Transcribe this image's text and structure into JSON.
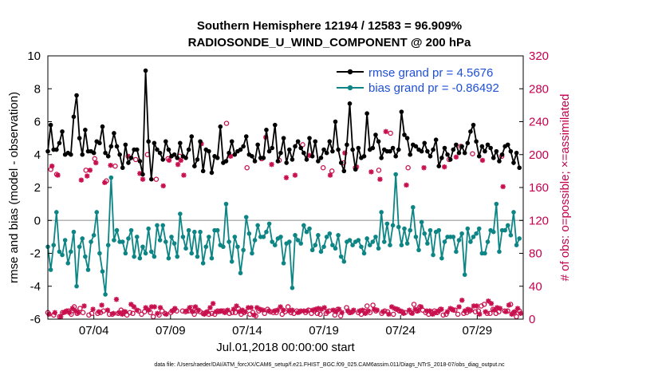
{
  "chart_data": {
    "type": "line",
    "title": "Southern Hemisphere 12194 / 12583 = 96.909%",
    "subtitle": "RADIOSONDE_U_WIND_COMPONENT @ 200 hPa",
    "xlabel": "Jul.01,2018 00:00:00 start",
    "ylabel": "rmse and bias (model - observation)",
    "ylabel_right": "# of obs: o=possible; ×=assimilated",
    "footnote": "data file: /Users/raeder/DAI/ATM_forcXX/CAM6_setup/f.e21.FHIST_BGC.f09_025.CAM6assim.011/Diags_NTrS_2018-07/obs_diag_output.nc",
    "xlim": [
      1,
      32
    ],
    "ylim": [
      -6,
      10
    ],
    "ylim_right": [
      0,
      320
    ],
    "grid": false,
    "legend_position": "top-right",
    "x_ticks": [
      {
        "value": 4,
        "label": "07/04"
      },
      {
        "value": 9,
        "label": "07/09"
      },
      {
        "value": 14,
        "label": "07/14"
      },
      {
        "value": 19,
        "label": "07/19"
      },
      {
        "value": 24,
        "label": "07/24"
      },
      {
        "value": 29,
        "label": "07/29"
      }
    ],
    "y_ticks": [
      -6,
      -4,
      -2,
      0,
      2,
      4,
      6,
      8,
      10
    ],
    "y_ticks_right": [
      0,
      40,
      80,
      120,
      160,
      200,
      240,
      280,
      320
    ],
    "zero_line": 0,
    "series": [
      {
        "name": "rmse grand pr = 4.5676",
        "color": "#000000",
        "marker": "star",
        "values": [
          4.2,
          5.8,
          4.3,
          4.3,
          4.7,
          5.4,
          4.0,
          4.1,
          4.0,
          6.3,
          7.6,
          5.0,
          4.0,
          5.5,
          4.2,
          4.2,
          4.1,
          4.8,
          4.7,
          5.7,
          4.1,
          3.9,
          4.5,
          5.3,
          4.5,
          4.0,
          3.2,
          4.6,
          3.5,
          3.8,
          4.3,
          4.3,
          3.6,
          2.8,
          9.1,
          4.8,
          2.5,
          4.7,
          4.3,
          4.1,
          3.7,
          4.8,
          4.3,
          3.9,
          4.0,
          3.8,
          4.7,
          3.9,
          3.8,
          4.3,
          5.1,
          3.3,
          3.7,
          4.8,
          3.0,
          4.3,
          4.2,
          2.9,
          3.9,
          3.8,
          5.7,
          3.5,
          3.6,
          4.1,
          4.8,
          4.0,
          4.2,
          4.3,
          4.5,
          5.1,
          4.0,
          3.9,
          3.6,
          4.6,
          3.8,
          3.8,
          5.5,
          4.2,
          4.4,
          5.8,
          3.6,
          4.1,
          5.0,
          3.5,
          4.3,
          3.7,
          4.5,
          4.8,
          4.4,
          4.1,
          3.7,
          5.0,
          3.9,
          4.8,
          3.6,
          3.8,
          4.3,
          4.1,
          4.8,
          4.2,
          6.0,
          4.3,
          3.5,
          3.0,
          4.6,
          7.1,
          4.3,
          3.1,
          4.4,
          3.8,
          3.9,
          6.5,
          4.3,
          4.4,
          5.2,
          4.8,
          3.8,
          4.3,
          4.2,
          4.2,
          4.4,
          3.9,
          4.3,
          6.6,
          5.2,
          5.0,
          4.0,
          4.6,
          4.5,
          4.3,
          4.2,
          4.7,
          4.2,
          3.9,
          4.3,
          4.9,
          3.3,
          3.8,
          4.4,
          4.0,
          3.7,
          4.3,
          4.6,
          4.1,
          4.5,
          4.1,
          4.7,
          5.4,
          5.8,
          4.8,
          3.9,
          4.5,
          4.2,
          4.6,
          4.4,
          3.8,
          4.2,
          3.6,
          4.0,
          4.5,
          4.6,
          4.2,
          3.5,
          4.1,
          3.2
        ]
      },
      {
        "name": "bias grand pr = -0.86492",
        "color": "#0e8585",
        "marker": "circle",
        "values": [
          -1.6,
          -3.0,
          -1.5,
          0.5,
          -1.9,
          -2.1,
          -1.2,
          -2.6,
          -1.9,
          -0.7,
          -4.0,
          -1.6,
          -1.1,
          -2.2,
          -3.0,
          -1.3,
          -0.9,
          0.5,
          -2.0,
          -3.1,
          -4.5,
          -1.5,
          2.6,
          -1.2,
          -0.6,
          -1.3,
          -1.3,
          -2.0,
          -1.1,
          -0.6,
          -2.2,
          -1.0,
          -2.3,
          -1.6,
          -2.0,
          -0.5,
          -1.9,
          -2.2,
          -0.3,
          -1.2,
          -0.3,
          -1.3,
          -2.3,
          -1.0,
          -1.4,
          -2.2,
          0.4,
          -1.0,
          -1.7,
          -0.6,
          -2.0,
          -0.7,
          -2.2,
          -0.7,
          -2.6,
          -1.6,
          -1.0,
          -2.3,
          -0.6,
          -0.6,
          -1.5,
          -1.6,
          1.0,
          -1.3,
          -2.5,
          -1.0,
          -1.6,
          -3.2,
          -1.8,
          0.2,
          -0.8,
          -2.0,
          -1.2,
          -0.3,
          -1.0,
          -1.0,
          -0.7,
          -0.2,
          -1.3,
          -1.5,
          -1.1,
          -1.0,
          -2.6,
          -1.4,
          -1.3,
          -4.1,
          -0.9,
          -1.2,
          -1.4,
          -0.3,
          -0.7,
          -0.5,
          -1.8,
          -1.5,
          -0.9,
          -1.9,
          -1.6,
          -1.0,
          -0.8,
          -1.5,
          -1.7,
          -0.9,
          -2.2,
          -2.5,
          -1.3,
          -1.2,
          -1.5,
          -1.3,
          -1.2,
          -1.6,
          -2.0,
          -1.1,
          -1.5,
          -1.3,
          -1.0,
          -1.7,
          0.5,
          -1.3,
          -0.2,
          -1.5,
          -0.3,
          2.8,
          -0.4,
          -1.5,
          -0.5,
          -1.4,
          -0.6,
          0.8,
          -1.0,
          -1.8,
          -0.1,
          -0.8,
          -1.4,
          -0.6,
          -2.1,
          -0.7,
          -0.6,
          -2.3,
          -1.3,
          -1.0,
          -1.0,
          -1.0,
          -1.9,
          -1.2,
          -0.8,
          -3.3,
          -0.5,
          -1.3,
          -1.0,
          -0.8,
          -0.5,
          -2.0,
          -2.0,
          -1.3,
          -0.6,
          -0.7,
          1.0,
          -1.9,
          -0.6,
          -0.6,
          -0.3,
          -0.9,
          0.5,
          -1.5,
          -1.1
        ]
      }
    ],
    "obs_possible": {
      "name": "possible",
      "color": "#c8104f",
      "marker": "o",
      "values": [
        8,
        182,
        5,
        176,
        3,
        8,
        9,
        10,
        6,
        15,
        7,
        13,
        8,
        181,
        5,
        7,
        195,
        7,
        8,
        10,
        168,
        6,
        6,
        186,
        7,
        11,
        9,
        5,
        8,
        7,
        194,
        10,
        6,
        9,
        200,
        8,
        3,
        170,
        5,
        10,
        7,
        195,
        8,
        11,
        10,
        198,
        10,
        9,
        10,
        14,
        6,
        10,
        9,
        7,
        8,
        6,
        7,
        6,
        10,
        10,
        10,
        238,
        7,
        8,
        8,
        13,
        6,
        8,
        184,
        6,
        8,
        4,
        10,
        195,
        7,
        12,
        9,
        8,
        8,
        193,
        6,
        9,
        15,
        8,
        7,
        10,
        9,
        212,
        8,
        11,
        7,
        10,
        7,
        6,
        184,
        7,
        10,
        180,
        5,
        12,
        4,
        190,
        14,
        8,
        9,
        184,
        8,
        6,
        10,
        16,
        8,
        17,
        10,
        181,
        7,
        10,
        9,
        226,
        6,
        12,
        10,
        9,
        8,
        184,
        8,
        18,
        10,
        15,
        11,
        8,
        6,
        8,
        10,
        8,
        12,
        5,
        6,
        194,
        12,
        11,
        6,
        210,
        7,
        8,
        10,
        201,
        9,
        10,
        16,
        18,
        7,
        7,
        12,
        7,
        9,
        198,
        10,
        10,
        18,
        8,
        3,
        10
      ]
    },
    "obs_assimilated": {
      "name": "assimilated",
      "color": "#c8104f",
      "marker": "*",
      "values": [
        6,
        186,
        8,
        175,
        3,
        8,
        10,
        8,
        13,
        10,
        8,
        169,
        16,
        174,
        181,
        12,
        190,
        9,
        17,
        166,
        11,
        187,
        7,
        24,
        8,
        6,
        9,
        198,
        18,
        15,
        11,
        177,
        170,
        14,
        11,
        15,
        15,
        7,
        14,
        162,
        6,
        193,
        10,
        13,
        188,
        193,
        175,
        10,
        14,
        9,
        15,
        11,
        213,
        6,
        9,
        14,
        19,
        9,
        9,
        10,
        8,
        11,
        198,
        12,
        16,
        9,
        11,
        9,
        14,
        14,
        5,
        14,
        12,
        11,
        221,
        10,
        188,
        10,
        11,
        15,
        11,
        172,
        10,
        11,
        175,
        8,
        10,
        10,
        10,
        199,
        11,
        12,
        13,
        12,
        14,
        9,
        175,
        11,
        9,
        12,
        8,
        202,
        10,
        8,
        11,
        185,
        10,
        11,
        7,
        10,
        179,
        12,
        11,
        170,
        9,
        228,
        6,
        15,
        13,
        12,
        10,
        7,
        163,
        11,
        7,
        12,
        10,
        15,
        184,
        10,
        10,
        6,
        8,
        10,
        12,
        185,
        9,
        13,
        11,
        197,
        15,
        23,
        10,
        12,
        11,
        16,
        16,
        6,
        193,
        9,
        22,
        19,
        11,
        14,
        13,
        161,
        9,
        17,
        6,
        9,
        13,
        7
      ]
    }
  }
}
